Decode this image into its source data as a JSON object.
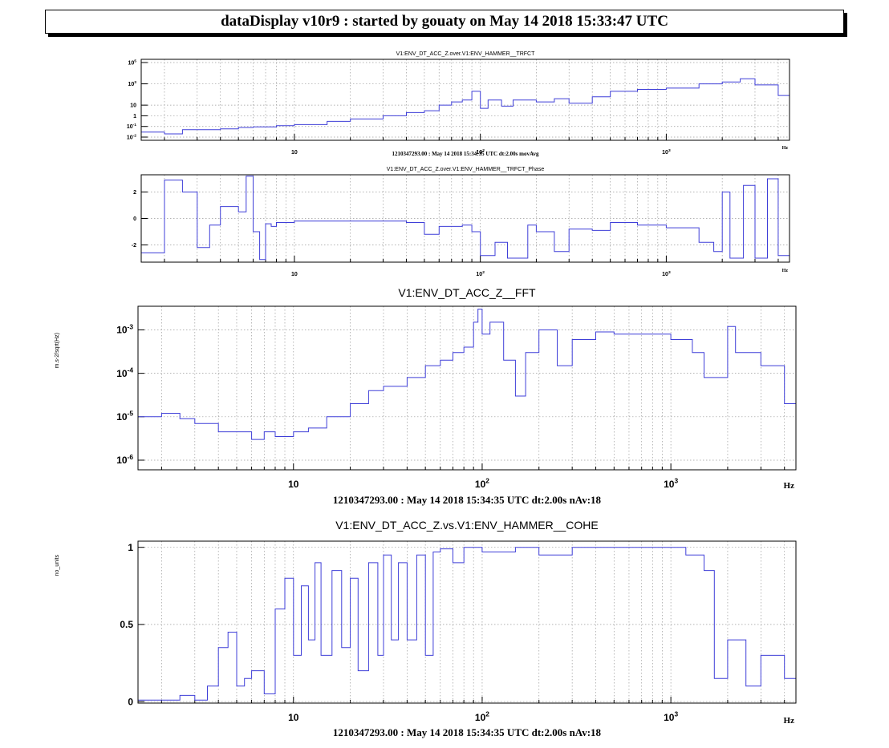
{
  "header": {
    "title": "dataDisplay v10r9 : started by gouaty on May 14 2018 15:33:47 UTC"
  },
  "chart_data": [
    {
      "type": "line",
      "title": "V1:ENV_DT_ACC_Z.over.V1:ENV_HAMMER__TRFCT",
      "xlabel": "Hz",
      "ylabel": "",
      "footer": "1210347293.00 : May 14 2018 15:34:35 UTC dt:2.00s movAvg",
      "xscale": "log",
      "yscale": "log",
      "xlim": [
        1.5,
        4600
      ],
      "ylim": [
        0.005,
        200000
      ],
      "xticks": [
        {
          "v": 10,
          "label": "10"
        },
        {
          "v": 100,
          "label": "10",
          "exp": "2"
        },
        {
          "v": 1000,
          "label": "10",
          "exp": "3"
        }
      ],
      "yticks": [
        {
          "v": 0.01,
          "label": "10",
          "exp": "-2"
        },
        {
          "v": 0.1,
          "label": "10",
          "exp": "-1"
        },
        {
          "v": 1,
          "label": "1"
        },
        {
          "v": 10,
          "label": "10"
        },
        {
          "v": 1000,
          "label": "10",
          "exp": "3"
        },
        {
          "v": 100000,
          "label": "10",
          "exp": "5"
        }
      ],
      "grid": true,
      "series": [
        {
          "color": "#3f3fd8",
          "x": [
            1.5,
            2,
            2.5,
            3,
            4,
            5,
            6,
            8,
            10,
            15,
            20,
            30,
            40,
            50,
            60,
            70,
            80,
            90,
            100,
            110,
            130,
            150,
            200,
            250,
            300,
            400,
            500,
            700,
            1000,
            1500,
            2000,
            2500,
            3000,
            4000,
            4600
          ],
          "y": [
            0.03,
            0.02,
            0.05,
            0.05,
            0.06,
            0.08,
            0.09,
            0.12,
            0.15,
            0.3,
            0.5,
            1,
            2,
            3,
            10,
            20,
            30,
            200,
            5,
            30,
            8,
            30,
            20,
            40,
            15,
            60,
            200,
            300,
            400,
            1000,
            1500,
            3000,
            800,
            80,
            40
          ]
        }
      ]
    },
    {
      "type": "line",
      "title": "V1:ENV_DT_ACC_Z.over.V1:ENV_HAMMER__TRFCT_Phase",
      "xlabel": "Hz",
      "ylabel": "",
      "xscale": "log",
      "yscale": "linear",
      "xlim": [
        1.5,
        4600
      ],
      "ylim": [
        -3.3,
        3.3
      ],
      "xticks": [
        {
          "v": 10,
          "label": "10"
        },
        {
          "v": 100,
          "label": "10",
          "exp": "2"
        },
        {
          "v": 1000,
          "label": "10",
          "exp": "3"
        }
      ],
      "yticks": [
        {
          "v": -2,
          "label": "-2"
        },
        {
          "v": 0,
          "label": "0"
        },
        {
          "v": 2,
          "label": "2"
        }
      ],
      "grid": true,
      "series": [
        {
          "color": "#3f3fd8",
          "x": [
            1.5,
            2,
            2.5,
            3,
            3.5,
            4,
            5,
            5.5,
            6,
            6.5,
            7,
            7.5,
            8,
            10,
            20,
            40,
            50,
            60,
            80,
            90,
            100,
            120,
            140,
            180,
            200,
            250,
            300,
            400,
            500,
            700,
            1000,
            1500,
            1800,
            2000,
            2200,
            2600,
            3000,
            3500,
            4000,
            4600
          ],
          "y": [
            -2.6,
            2.9,
            2.0,
            -2.2,
            -0.5,
            0.9,
            0.5,
            3.2,
            -1.0,
            -3.1,
            -0.4,
            -0.6,
            -0.3,
            -0.2,
            -0.2,
            -0.3,
            -1.2,
            -0.6,
            -0.5,
            -1.0,
            -2.8,
            -1.8,
            -3.0,
            -0.5,
            -1.0,
            -2.5,
            -0.8,
            -0.9,
            -0.3,
            -0.5,
            -0.7,
            -1.8,
            -2.5,
            2.0,
            -3.0,
            2.5,
            -3.0,
            3.0,
            -2.8,
            1.5
          ]
        }
      ]
    },
    {
      "type": "line",
      "title": "V1:ENV_DT_ACC_Z__FFT",
      "xlabel": "Hz",
      "ylabel": "m.s-2/sqrt(Hz)",
      "footer": "1210347293.00 : May 14 2018 15:34:35 UTC dt:2.00s nAv:18",
      "xscale": "log",
      "yscale": "log",
      "xlim": [
        1.5,
        4600
      ],
      "ylim": [
        6e-07,
        0.0035
      ],
      "xticks": [
        {
          "v": 10,
          "label": "10"
        },
        {
          "v": 100,
          "label": "10",
          "exp": "2"
        },
        {
          "v": 1000,
          "label": "10",
          "exp": "3"
        }
      ],
      "yticks": [
        {
          "v": 1e-06,
          "label": "10",
          "exp": "-6"
        },
        {
          "v": 1e-05,
          "label": "10",
          "exp": "-5"
        },
        {
          "v": 0.0001,
          "label": "10",
          "exp": "-4"
        },
        {
          "v": 0.001,
          "label": "10",
          "exp": "-3"
        }
      ],
      "grid": true,
      "series": [
        {
          "color": "#3f3fd8",
          "x": [
            1.5,
            2,
            2.5,
            3,
            4,
            5,
            6,
            7,
            8,
            10,
            12,
            15,
            20,
            25,
            30,
            40,
            50,
            60,
            70,
            80,
            90,
            95,
            100,
            110,
            130,
            150,
            170,
            200,
            250,
            300,
            400,
            500,
            700,
            1000,
            1300,
            1500,
            2000,
            2200,
            3000,
            4000,
            4600
          ],
          "y": [
            1e-05,
            1.2e-05,
            9e-06,
            7e-06,
            4.5e-06,
            4.5e-06,
            3e-06,
            4.5e-06,
            3.5e-06,
            4.5e-06,
            5.5e-06,
            1e-05,
            2e-05,
            4e-05,
            5e-05,
            8e-05,
            0.00015,
            0.0002,
            0.0003,
            0.0004,
            0.0015,
            0.003,
            0.0008,
            0.0015,
            0.0002,
            3e-05,
            0.0003,
            0.001,
            0.00015,
            0.0006,
            0.0009,
            0.0008,
            0.0008,
            0.0006,
            0.0003,
            8e-05,
            0.0012,
            0.0003,
            0.00015,
            2e-05,
            1e-06
          ]
        }
      ]
    },
    {
      "type": "line",
      "title": "V1:ENV_DT_ACC_Z.vs.V1:ENV_HAMMER__COHE",
      "xlabel": "Hz",
      "ylabel": "no_units",
      "footer": "1210347293.00 : May 14 2018 15:34:35 UTC dt:2.00s nAv:18",
      "xscale": "log",
      "yscale": "linear",
      "xlim": [
        1.5,
        4600
      ],
      "ylim": [
        -0.01,
        1.04
      ],
      "xticks": [
        {
          "v": 10,
          "label": "10"
        },
        {
          "v": 100,
          "label": "10",
          "exp": "2"
        },
        {
          "v": 1000,
          "label": "10",
          "exp": "3"
        }
      ],
      "yticks": [
        {
          "v": 0,
          "label": "0"
        },
        {
          "v": 0.5,
          "label": "0.5"
        },
        {
          "v": 1,
          "label": "1"
        }
      ],
      "grid": true,
      "series": [
        {
          "color": "#3f3fd8",
          "x": [
            1.5,
            2,
            2.5,
            3,
            3.5,
            4,
            4.5,
            5,
            5.5,
            6,
            7,
            8,
            9,
            10,
            11,
            12,
            13,
            14,
            16,
            18,
            20,
            22,
            25,
            28,
            30,
            33,
            36,
            40,
            45,
            50,
            55,
            60,
            70,
            80,
            100,
            150,
            200,
            300,
            500,
            1000,
            1200,
            1500,
            1700,
            2000,
            2500,
            3000,
            4000,
            4600
          ],
          "y": [
            0.01,
            0.01,
            0.04,
            0.01,
            0.1,
            0.35,
            0.45,
            0.1,
            0.15,
            0.2,
            0.05,
            0.6,
            0.8,
            0.3,
            0.75,
            0.4,
            0.9,
            0.3,
            0.85,
            0.35,
            0.8,
            0.2,
            0.9,
            0.3,
            0.95,
            0.4,
            0.9,
            0.4,
            0.95,
            0.3,
            0.97,
            0.99,
            0.9,
            1.0,
            0.97,
            1.0,
            0.95,
            1.0,
            1.0,
            1.0,
            0.95,
            0.85,
            0.15,
            0.4,
            0.1,
            0.3,
            0.15,
            0.2
          ]
        }
      ]
    }
  ]
}
